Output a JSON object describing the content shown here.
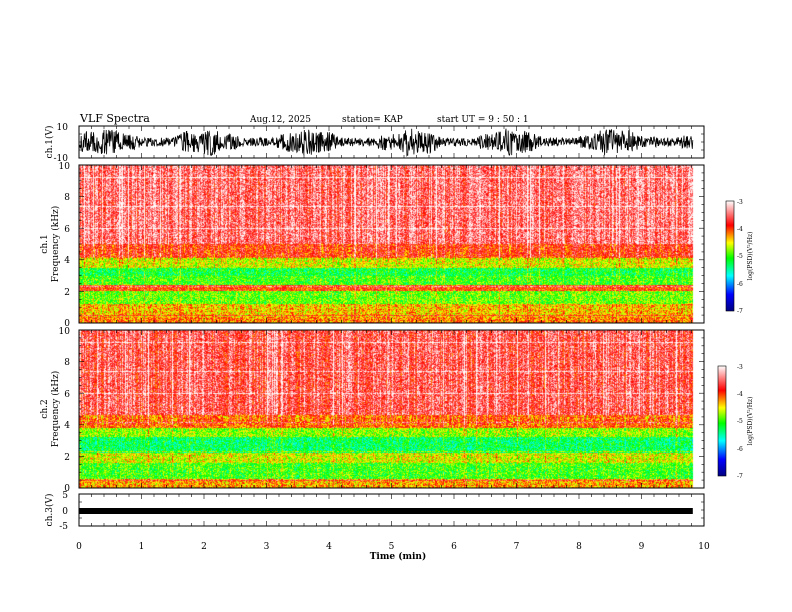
{
  "header": {
    "title": "VLF Spectra",
    "date": "Aug.12, 2025",
    "station": "station= KAP",
    "start_ut": "start  UT =   9 : 50 : 1"
  },
  "chart_data": [
    {
      "type": "line",
      "name": "ch1-waveform",
      "ylabel": "ch.1(V)",
      "ylim": [
        -10,
        10
      ],
      "ytick_labels": [
        "10",
        "-10"
      ],
      "x_range_min": [
        0,
        9.82
      ],
      "description_level": "noisy waveform spanning roughly -9 to 8 V"
    },
    {
      "type": "heatmap",
      "name": "ch1-spectrogram",
      "ylabel": [
        "ch.1",
        "Frequency  (kHz)"
      ],
      "ylim": [
        0,
        10
      ],
      "ytick_labels": [
        "0",
        "2",
        "4",
        "6",
        "8",
        "10"
      ],
      "x_range_min": [
        0,
        9.82
      ],
      "colorbar": {
        "label": "log(PSD)(V²/Hz)",
        "range": [
          -7,
          -3
        ],
        "tick_labels": [
          "-3",
          "-4",
          "-5",
          "-6",
          "-7"
        ]
      },
      "bands_khz": [
        {
          "from": 0,
          "to": 0.4,
          "level": -4.2
        },
        {
          "from": 0.4,
          "to": 1.2,
          "level": -4.4
        },
        {
          "from": 1.2,
          "to": 2.0,
          "level": -4.9
        },
        {
          "from": 2.0,
          "to": 2.4,
          "level": -4.0
        },
        {
          "from": 2.4,
          "to": 3.0,
          "level": -5.0
        },
        {
          "from": 3.0,
          "to": 3.5,
          "level": -5.2
        },
        {
          "from": 3.5,
          "to": 4.2,
          "level": -4.6
        },
        {
          "from": 4.2,
          "to": 5.0,
          "level": -3.9
        },
        {
          "from": 5.0,
          "to": 10.0,
          "level": -3.5
        }
      ]
    },
    {
      "type": "heatmap",
      "name": "ch2-spectrogram",
      "ylabel": [
        "ch.2",
        "Frequency  (kHz)"
      ],
      "ylim": [
        0,
        10
      ],
      "ytick_labels": [
        "0",
        "2",
        "4",
        "6",
        "8",
        "10"
      ],
      "x_range_min": [
        0,
        9.82
      ],
      "colorbar": {
        "label": "log(PSD)(V²/Hz)",
        "range": [
          -7,
          -3
        ],
        "tick_labels": [
          "-3",
          "-4",
          "-5",
          "-6",
          "-7"
        ]
      },
      "bands_khz": [
        {
          "from": 0,
          "to": 0.6,
          "level": -4.3
        },
        {
          "from": 0.6,
          "to": 1.6,
          "level": -5.0
        },
        {
          "from": 1.6,
          "to": 2.2,
          "level": -4.6
        },
        {
          "from": 2.2,
          "to": 3.2,
          "level": -5.3
        },
        {
          "from": 3.2,
          "to": 3.8,
          "level": -4.8
        },
        {
          "from": 3.8,
          "to": 4.6,
          "level": -4.1
        },
        {
          "from": 4.6,
          "to": 10.0,
          "level": -3.6
        }
      ]
    },
    {
      "type": "line",
      "name": "ch3-waveform",
      "ylabel": "ch.3(V)",
      "ylim": [
        -5,
        5
      ],
      "ytick_labels": [
        "5",
        "0",
        "-5"
      ],
      "x_range_min": [
        0,
        9.82
      ],
      "description_level": "constant thick band near -0.5 V"
    }
  ],
  "x_axis": {
    "label": "Time  (min)",
    "range": [
      0,
      10
    ],
    "tick_labels": [
      "0",
      "1",
      "2",
      "3",
      "4",
      "5",
      "6",
      "7",
      "8",
      "9",
      "10"
    ]
  },
  "colors": {
    "axis": "#000000",
    "colormap": [
      "#000080",
      "#0000ff",
      "#00ffff",
      "#00ff00",
      "#ffff00",
      "#ff0000",
      "#ffffff"
    ]
  }
}
